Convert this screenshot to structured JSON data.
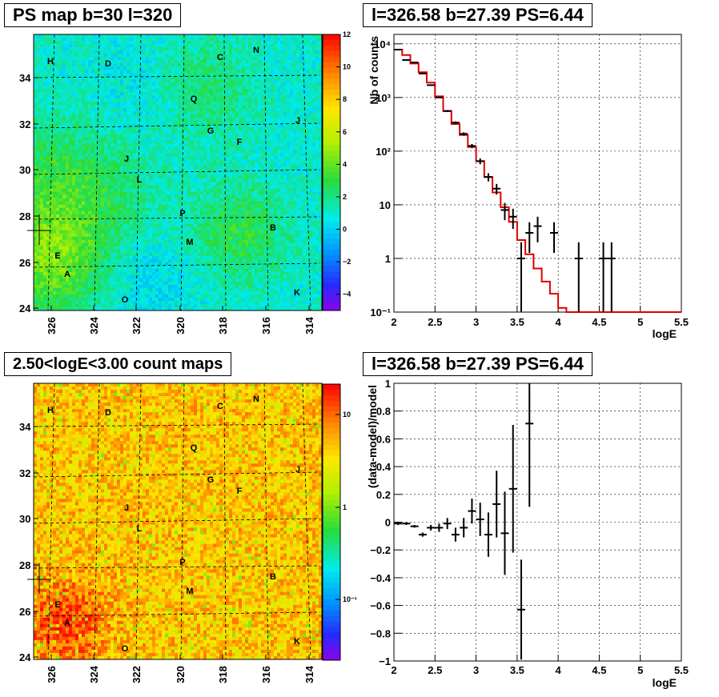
{
  "titles": {
    "map1": "PS map b=30 l=320",
    "spec": "l=326.58 b=27.39 PS=6.44",
    "map2": "2.50<logE<3.00 count maps",
    "resid": "l=326.58 b=27.39 PS=6.44"
  },
  "chart_data": [
    {
      "type": "heatmap",
      "title": "PS map b=30 l=320",
      "x_ticks": [
        "326",
        "324",
        "322",
        "320",
        "318",
        "316",
        "314"
      ],
      "y_ticks": [
        "24",
        "26",
        "28",
        "30",
        "32",
        "34"
      ],
      "colorbar_ticks": [
        "12",
        "10",
        "8",
        "6",
        "4",
        "2",
        "0",
        "−2",
        "−4"
      ],
      "colorbar_range": [
        -5,
        12
      ],
      "sources": [
        "H",
        "D",
        "C",
        "N",
        "Q",
        "G",
        "F",
        "J",
        "J",
        "L",
        "P",
        "M",
        "B",
        "E",
        "A",
        "O",
        "K"
      ]
    },
    {
      "type": "line",
      "title": "l=326.58 b=27.39 PS=6.44",
      "xlabel": "logE",
      "ylabel": "Nb of counts",
      "xlim": [
        2,
        5.5
      ],
      "ylim": [
        0.1,
        15000
      ],
      "log_y": true,
      "x_ticks": [
        "2",
        "2.5",
        "3",
        "3.5",
        "4",
        "4.5",
        "5",
        "5.5"
      ],
      "y_ticks": [
        "10⁻¹",
        "1",
        "10",
        "10²",
        "10³",
        "10⁴"
      ],
      "grid": true,
      "data_points": [
        {
          "x": 2.05,
          "y": 7800
        },
        {
          "x": 2.15,
          "y": 5000
        },
        {
          "x": 2.25,
          "y": 4500
        },
        {
          "x": 2.35,
          "y": 2800
        },
        {
          "x": 2.45,
          "y": 1700
        },
        {
          "x": 2.55,
          "y": 1000
        },
        {
          "x": 2.65,
          "y": 560
        },
        {
          "x": 2.75,
          "y": 340
        },
        {
          "x": 2.85,
          "y": 210
        },
        {
          "x": 2.95,
          "y": 125
        },
        {
          "x": 3.05,
          "y": 65
        },
        {
          "x": 3.15,
          "y": 33
        },
        {
          "x": 3.25,
          "y": 20
        },
        {
          "x": 3.35,
          "y": 8
        },
        {
          "x": 3.45,
          "y": 6
        },
        {
          "x": 3.55,
          "y": 1
        },
        {
          "x": 3.65,
          "y": 3
        },
        {
          "x": 3.75,
          "y": 4
        },
        {
          "x": 3.95,
          "y": 3
        },
        {
          "x": 4.25,
          "y": 1
        },
        {
          "x": 4.55,
          "y": 1
        },
        {
          "x": 4.65,
          "y": 1
        }
      ],
      "model": [
        {
          "x": 2.0,
          "y": 7800
        },
        {
          "x": 2.1,
          "y": 6200
        },
        {
          "x": 2.2,
          "y": 4300
        },
        {
          "x": 2.3,
          "y": 2950
        },
        {
          "x": 2.4,
          "y": 1900
        },
        {
          "x": 2.5,
          "y": 1050
        },
        {
          "x": 2.6,
          "y": 560
        },
        {
          "x": 2.7,
          "y": 320
        },
        {
          "x": 2.8,
          "y": 200
        },
        {
          "x": 2.9,
          "y": 120
        },
        {
          "x": 3.0,
          "y": 65
        },
        {
          "x": 3.1,
          "y": 33
        },
        {
          "x": 3.2,
          "y": 17
        },
        {
          "x": 3.3,
          "y": 9
        },
        {
          "x": 3.4,
          "y": 4.8
        },
        {
          "x": 3.5,
          "y": 2.2
        },
        {
          "x": 3.6,
          "y": 1.2
        },
        {
          "x": 3.7,
          "y": 0.65
        },
        {
          "x": 3.8,
          "y": 0.37
        },
        {
          "x": 3.9,
          "y": 0.22
        },
        {
          "x": 4.0,
          "y": 0.12
        },
        {
          "x": 4.1,
          "y": 0.1
        },
        {
          "x": 5.5,
          "y": 0.1
        }
      ]
    },
    {
      "type": "heatmap",
      "title": "2.50<logE<3.00 count maps",
      "x_ticks": [
        "326",
        "324",
        "322",
        "320",
        "318",
        "316",
        "314"
      ],
      "y_ticks": [
        "24",
        "26",
        "28",
        "30",
        "32",
        "34"
      ],
      "colorbar_ticks": [
        "10",
        "1",
        "10⁻¹"
      ],
      "colorbar_log": true,
      "sources": [
        "H",
        "D",
        "C",
        "N",
        "Q",
        "G",
        "F",
        "J",
        "J",
        "L",
        "P",
        "M",
        "B",
        "E",
        "A",
        "O",
        "K"
      ]
    },
    {
      "type": "scatter",
      "title": "l=326.58 b=27.39 PS=6.44",
      "xlabel": "logE",
      "ylabel": "(data-model)/model",
      "xlim": [
        2,
        5.5
      ],
      "ylim": [
        -1,
        1
      ],
      "x_ticks": [
        "2",
        "2.5",
        "3",
        "3.5",
        "4",
        "4.5",
        "5",
        "5.5"
      ],
      "y_ticks": [
        "−1",
        "−0.8",
        "−0.6",
        "−0.4",
        "−0.2",
        "0",
        "0.2",
        "0.4",
        "0.6",
        "0.8",
        "1"
      ],
      "grid": true,
      "points": [
        {
          "x": 2.05,
          "y": -0.01,
          "err": 0.01
        },
        {
          "x": 2.15,
          "y": -0.01,
          "err": 0.01
        },
        {
          "x": 2.25,
          "y": -0.03,
          "err": 0.01
        },
        {
          "x": 2.35,
          "y": -0.09,
          "err": 0.015
        },
        {
          "x": 2.45,
          "y": -0.04,
          "err": 0.02
        },
        {
          "x": 2.55,
          "y": -0.04,
          "err": 0.03
        },
        {
          "x": 2.65,
          "y": -0.01,
          "err": 0.04
        },
        {
          "x": 2.75,
          "y": -0.09,
          "err": 0.05
        },
        {
          "x": 2.85,
          "y": -0.04,
          "err": 0.07
        },
        {
          "x": 2.95,
          "y": 0.08,
          "err": 0.09
        },
        {
          "x": 3.05,
          "y": 0.02,
          "err": 0.12
        },
        {
          "x": 3.15,
          "y": -0.09,
          "err": 0.16
        },
        {
          "x": 3.25,
          "y": 0.13,
          "err": 0.24
        },
        {
          "x": 3.35,
          "y": -0.08,
          "err": 0.3
        },
        {
          "x": 3.45,
          "y": 0.24,
          "err": 0.46
        },
        {
          "x": 3.55,
          "y": -0.63,
          "err": 0.36
        },
        {
          "x": 3.65,
          "y": 0.71,
          "err": 0.6
        }
      ]
    }
  ]
}
